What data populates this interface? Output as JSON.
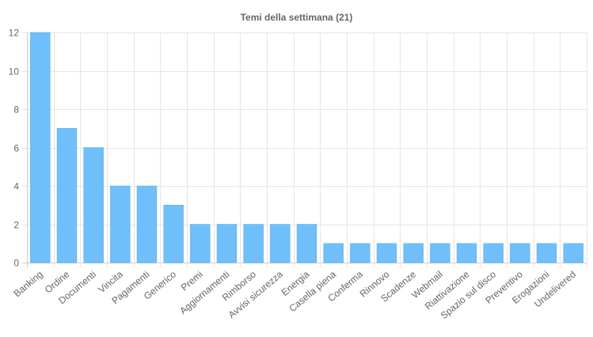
{
  "chart_data": {
    "type": "bar",
    "title": "Temi della settimana (21)",
    "categories": [
      "Banking",
      "Ordine",
      "Documenti",
      "Vincita",
      "Pagamenti",
      "Generico",
      "Premi",
      "Aggiornamenti",
      "Rimborso",
      "Avvisi sicurezza",
      "Energia",
      "Casella piena",
      "Conferma",
      "Rinnovo",
      "Scadenze",
      "Webmail",
      "Riattivazione",
      "Spazio sul disco",
      "Preventivo",
      "Erogazioni",
      "Undelivered"
    ],
    "values": [
      12,
      7,
      6,
      4,
      4,
      3,
      2,
      2,
      2,
      2,
      2,
      1,
      1,
      1,
      1,
      1,
      1,
      1,
      1,
      1,
      1
    ],
    "ylim": [
      0,
      12
    ],
    "yticks": [
      0,
      2,
      4,
      6,
      8,
      10,
      12
    ],
    "grid": true,
    "xlabel": "",
    "ylabel": "",
    "colors": {
      "bar_fill": "#6fbffa",
      "bar_stroke": "#5aa9e6",
      "grid": "#e5e5e5",
      "axis_text": "#666666",
      "title": "#666666"
    }
  }
}
